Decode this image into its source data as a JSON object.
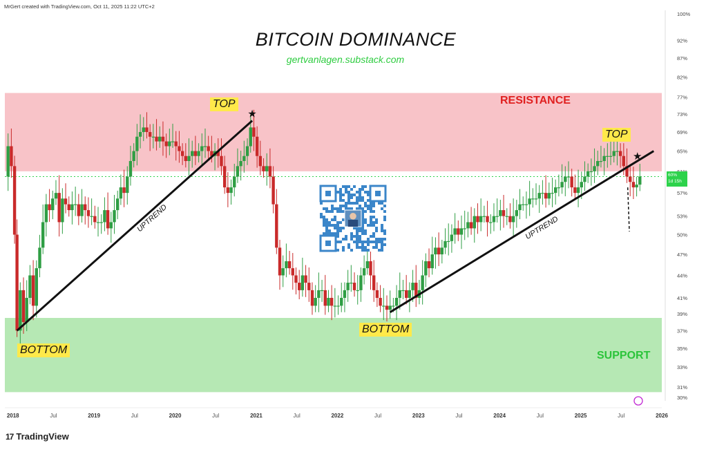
{
  "header": {
    "credit": "MrGert created with TradingView.com, Oct 11, 2025 11:22 UTC+2"
  },
  "annotations": {
    "subtitle": "gertvanlagen.substack.com",
    "top_left": "TOP",
    "top_right": "TOP",
    "bottom_left": "BOTTOM",
    "bottom_mid": "BOTTOM",
    "resistance": "RESISTANCE",
    "support": "SUPPORT",
    "uptrend_1": "UPTREND",
    "uptrend_2": "UPTREND"
  },
  "footer": {
    "brand": "TradingView",
    "brand_mark": "17"
  },
  "price_tag": {
    "value": "60%",
    "countdown": "1d 15h"
  },
  "colors": {
    "bull": "#2f9e44",
    "bear": "#c92a2a",
    "resistance_zone": "#f8c3c8",
    "support_zone": "#b6e8b4",
    "resistance_text": "#e02020",
    "support_text": "#2bc43a",
    "highlight": "#ffe94a",
    "current_price": "#2dd24b"
  },
  "chart_data": {
    "type": "candlestick",
    "title": "BITCOIN DOMINANCE",
    "ylabel": "",
    "y_scale": "log",
    "ylim": [
      30,
      100
    ],
    "yticks": [
      "100%",
      "92%",
      "87%",
      "82%",
      "77%",
      "73%",
      "69%",
      "65%",
      "61%",
      "57%",
      "53%",
      "50%",
      "47%",
      "44%",
      "41%",
      "39%",
      "37%",
      "35%",
      "33%",
      "31%",
      "30%"
    ],
    "ytick_values": [
      100,
      92,
      87,
      82,
      77,
      73,
      69,
      65,
      61,
      57,
      53,
      50,
      47,
      44,
      41,
      39,
      37,
      35,
      33,
      31,
      30
    ],
    "xlim": [
      2017.9,
      2026.0
    ],
    "xticks": [
      {
        "label": "2018",
        "t": 2018.0,
        "bold": true
      },
      {
        "label": "Jul",
        "t": 2018.5,
        "bold": false
      },
      {
        "label": "2019",
        "t": 2019.0,
        "bold": true
      },
      {
        "label": "Jul",
        "t": 2019.5,
        "bold": false
      },
      {
        "label": "2020",
        "t": 2020.0,
        "bold": true
      },
      {
        "label": "Jul",
        "t": 2020.5,
        "bold": false
      },
      {
        "label": "2021",
        "t": 2021.0,
        "bold": true
      },
      {
        "label": "Jul",
        "t": 2021.5,
        "bold": false
      },
      {
        "label": "2022",
        "t": 2022.0,
        "bold": true
      },
      {
        "label": "Jul",
        "t": 2022.5,
        "bold": false
      },
      {
        "label": "2023",
        "t": 2023.0,
        "bold": true
      },
      {
        "label": "Jul",
        "t": 2023.5,
        "bold": false
      },
      {
        "label": "2024",
        "t": 2024.0,
        "bold": true
      },
      {
        "label": "Jul",
        "t": 2024.5,
        "bold": false
      },
      {
        "label": "2025",
        "t": 2025.0,
        "bold": true
      },
      {
        "label": "Jul",
        "t": 2025.5,
        "bold": false
      },
      {
        "label": "2026",
        "t": 2026.0,
        "bold": true
      }
    ],
    "zones": [
      {
        "name": "RESISTANCE",
        "from": 61,
        "to": 78
      },
      {
        "name": "SUPPORT",
        "from": 30.5,
        "to": 38.5
      }
    ],
    "current_price": 60,
    "trendlines": [
      {
        "label": "UPTREND",
        "from": [
          2018.05,
          37
        ],
        "to": [
          2020.95,
          71.5
        ]
      },
      {
        "label": "UPTREND",
        "from": [
          2022.65,
          39.2
        ],
        "to": [
          2025.9,
          65
        ]
      }
    ],
    "projection": {
      "from": [
        2025.58,
        58
      ],
      "to": [
        2025.6,
        50.5
      ]
    },
    "markers": [
      {
        "symbol": "★",
        "t": 2020.95,
        "v": 72.3
      },
      {
        "symbol": "★",
        "t": 2025.7,
        "v": 63.3
      }
    ],
    "series_weekly_close": [
      [
        2017.9,
        60
      ],
      [
        2017.94,
        66
      ],
      [
        2017.98,
        62
      ],
      [
        2018.02,
        50
      ],
      [
        2018.05,
        37
      ],
      [
        2018.09,
        42
      ],
      [
        2018.13,
        38
      ],
      [
        2018.17,
        41
      ],
      [
        2018.21,
        44
      ],
      [
        2018.25,
        40
      ],
      [
        2018.29,
        45
      ],
      [
        2018.33,
        48
      ],
      [
        2018.37,
        52
      ],
      [
        2018.41,
        55
      ],
      [
        2018.45,
        54
      ],
      [
        2018.49,
        56
      ],
      [
        2018.53,
        57
      ],
      [
        2018.57,
        52
      ],
      [
        2018.61,
        56
      ],
      [
        2018.65,
        55
      ],
      [
        2018.69,
        54
      ],
      [
        2018.73,
        55
      ],
      [
        2018.77,
        55
      ],
      [
        2018.81,
        53
      ],
      [
        2018.85,
        55
      ],
      [
        2018.89,
        54
      ],
      [
        2018.93,
        53
      ],
      [
        2018.97,
        53
      ],
      [
        2019.01,
        52
      ],
      [
        2019.05,
        52
      ],
      [
        2019.09,
        52
      ],
      [
        2019.13,
        54
      ],
      [
        2019.17,
        51
      ],
      [
        2019.21,
        52
      ],
      [
        2019.25,
        54
      ],
      [
        2019.29,
        56
      ],
      [
        2019.33,
        58
      ],
      [
        2019.37,
        57
      ],
      [
        2019.41,
        60
      ],
      [
        2019.45,
        63
      ],
      [
        2019.49,
        65
      ],
      [
        2019.53,
        68
      ],
      [
        2019.57,
        69
      ],
      [
        2019.61,
        70
      ],
      [
        2019.65,
        69
      ],
      [
        2019.69,
        68
      ],
      [
        2019.73,
        68
      ],
      [
        2019.77,
        67
      ],
      [
        2019.81,
        68
      ],
      [
        2019.85,
        67
      ],
      [
        2019.89,
        66
      ],
      [
        2019.93,
        67
      ],
      [
        2019.97,
        67
      ],
      [
        2020.01,
        66
      ],
      [
        2020.05,
        65
      ],
      [
        2020.09,
        64
      ],
      [
        2020.13,
        63
      ],
      [
        2020.17,
        64
      ],
      [
        2020.21,
        65
      ],
      [
        2020.25,
        64
      ],
      [
        2020.29,
        65
      ],
      [
        2020.33,
        66
      ],
      [
        2020.37,
        66
      ],
      [
        2020.41,
        65
      ],
      [
        2020.45,
        64
      ],
      [
        2020.49,
        65
      ],
      [
        2020.53,
        64
      ],
      [
        2020.57,
        62
      ],
      [
        2020.61,
        58
      ],
      [
        2020.65,
        57
      ],
      [
        2020.69,
        58
      ],
      [
        2020.73,
        60
      ],
      [
        2020.77,
        62
      ],
      [
        2020.81,
        63
      ],
      [
        2020.85,
        64
      ],
      [
        2020.89,
        66
      ],
      [
        2020.93,
        70
      ],
      [
        2020.97,
        68
      ],
      [
        2021.01,
        64
      ],
      [
        2021.05,
        62
      ],
      [
        2021.09,
        61
      ],
      [
        2021.13,
        62
      ],
      [
        2021.17,
        60
      ],
      [
        2021.21,
        55
      ],
      [
        2021.25,
        48
      ],
      [
        2021.29,
        44
      ],
      [
        2021.33,
        45
      ],
      [
        2021.37,
        46
      ],
      [
        2021.41,
        45
      ],
      [
        2021.45,
        44
      ],
      [
        2021.49,
        43
      ],
      [
        2021.53,
        42
      ],
      [
        2021.57,
        44
      ],
      [
        2021.61,
        43
      ],
      [
        2021.65,
        42
      ],
      [
        2021.69,
        40
      ],
      [
        2021.73,
        41
      ],
      [
        2021.77,
        42
      ],
      [
        2021.81,
        42
      ],
      [
        2021.85,
        40
      ],
      [
        2021.89,
        41
      ],
      [
        2021.93,
        40
      ],
      [
        2021.97,
        40
      ],
      [
        2022.01,
        40
      ],
      [
        2022.05,
        41
      ],
      [
        2022.09,
        42
      ],
      [
        2022.13,
        43
      ],
      [
        2022.17,
        43
      ],
      [
        2022.21,
        42
      ],
      [
        2022.25,
        42
      ],
      [
        2022.29,
        44
      ],
      [
        2022.33,
        45
      ],
      [
        2022.37,
        46
      ],
      [
        2022.41,
        44
      ],
      [
        2022.45,
        42
      ],
      [
        2022.49,
        41
      ],
      [
        2022.53,
        40
      ],
      [
        2022.57,
        40
      ],
      [
        2022.61,
        39.5
      ],
      [
        2022.65,
        40
      ],
      [
        2022.69,
        40
      ],
      [
        2022.73,
        41
      ],
      [
        2022.77,
        42
      ],
      [
        2022.81,
        42
      ],
      [
        2022.85,
        41
      ],
      [
        2022.89,
        42
      ],
      [
        2022.93,
        43
      ],
      [
        2022.97,
        41
      ],
      [
        2023.01,
        42
      ],
      [
        2023.05,
        44
      ],
      [
        2023.09,
        46
      ],
      [
        2023.13,
        45
      ],
      [
        2023.17,
        47
      ],
      [
        2023.21,
        48
      ],
      [
        2023.25,
        47
      ],
      [
        2023.29,
        48
      ],
      [
        2023.33,
        49
      ],
      [
        2023.37,
        49
      ],
      [
        2023.41,
        50
      ],
      [
        2023.45,
        51
      ],
      [
        2023.49,
        50
      ],
      [
        2023.53,
        51
      ],
      [
        2023.57,
        51
      ],
      [
        2023.61,
        52
      ],
      [
        2023.65,
        51
      ],
      [
        2023.69,
        53
      ],
      [
        2023.73,
        52
      ],
      [
        2023.77,
        53
      ],
      [
        2023.81,
        53
      ],
      [
        2023.85,
        52
      ],
      [
        2023.89,
        52
      ],
      [
        2023.93,
        53
      ],
      [
        2023.97,
        53
      ],
      [
        2024.01,
        54
      ],
      [
        2024.05,
        53
      ],
      [
        2024.09,
        53
      ],
      [
        2024.13,
        52
      ],
      [
        2024.17,
        53
      ],
      [
        2024.21,
        54
      ],
      [
        2024.25,
        55
      ],
      [
        2024.29,
        55
      ],
      [
        2024.33,
        55
      ],
      [
        2024.37,
        56
      ],
      [
        2024.41,
        56
      ],
      [
        2024.45,
        56
      ],
      [
        2024.49,
        57
      ],
      [
        2024.53,
        57
      ],
      [
        2024.57,
        56
      ],
      [
        2024.61,
        57
      ],
      [
        2024.65,
        57
      ],
      [
        2024.69,
        58
      ],
      [
        2024.73,
        58
      ],
      [
        2024.77,
        59
      ],
      [
        2024.81,
        60
      ],
      [
        2024.85,
        60
      ],
      [
        2024.89,
        58
      ],
      [
        2024.93,
        57
      ],
      [
        2024.97,
        58
      ],
      [
        2025.01,
        59
      ],
      [
        2025.05,
        60
      ],
      [
        2025.09,
        61
      ],
      [
        2025.13,
        61
      ],
      [
        2025.17,
        62
      ],
      [
        2025.21,
        63
      ],
      [
        2025.25,
        63
      ],
      [
        2025.29,
        64
      ],
      [
        2025.33,
        64
      ],
      [
        2025.37,
        64
      ],
      [
        2025.41,
        65
      ],
      [
        2025.45,
        65
      ],
      [
        2025.49,
        64
      ],
      [
        2025.53,
        62
      ],
      [
        2025.57,
        60
      ],
      [
        2025.61,
        59
      ],
      [
        2025.65,
        58
      ],
      [
        2025.69,
        58.5
      ],
      [
        2025.73,
        60
      ]
    ]
  }
}
